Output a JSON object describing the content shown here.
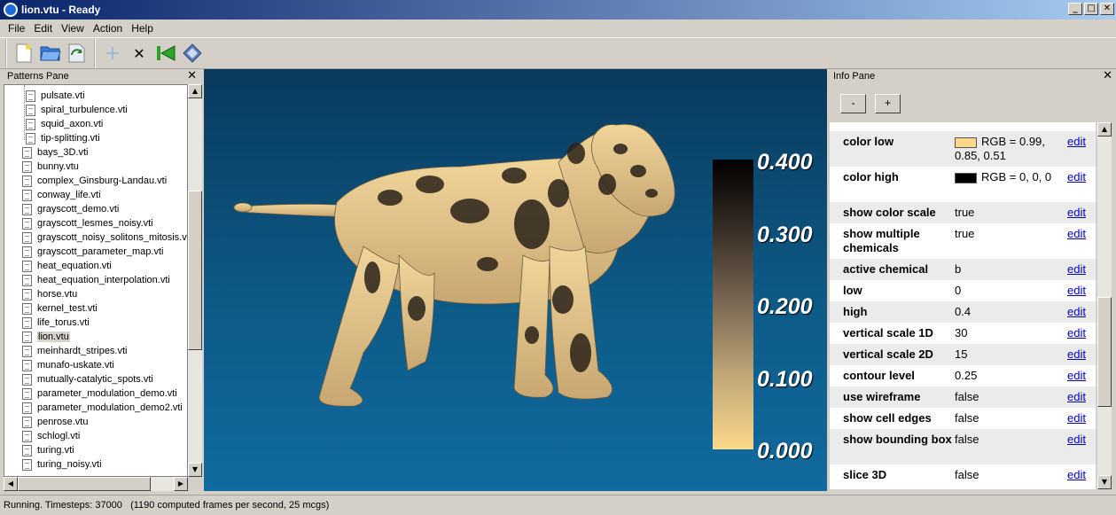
{
  "window": {
    "title": "lion.vtu - Ready",
    "min": "_",
    "max": "□",
    "close": "✕"
  },
  "menu": [
    {
      "label": "File"
    },
    {
      "label": "Edit"
    },
    {
      "label": "View"
    },
    {
      "label": "Action"
    },
    {
      "label": "Help"
    }
  ],
  "toolbar": {
    "icons": [
      "new-file-icon",
      "open-folder-icon",
      "reload-icon",
      "add-icon",
      "clear-icon",
      "restart-icon",
      "render-icon"
    ],
    "add_glyph": "+",
    "clear_glyph": "✕"
  },
  "patterns_pane": {
    "title": "Patterns Pane",
    "close": "✕",
    "items": [
      {
        "label": "pulsate.vti",
        "level": 2
      },
      {
        "label": "spiral_turbulence.vti",
        "level": 2
      },
      {
        "label": "squid_axon.vti",
        "level": 2
      },
      {
        "label": "tip-splitting.vti",
        "level": 2
      },
      {
        "label": "bays_3D.vti",
        "level": 1
      },
      {
        "label": "bunny.vtu",
        "level": 1
      },
      {
        "label": "complex_Ginsburg-Landau.vti",
        "level": 1
      },
      {
        "label": "conway_life.vti",
        "level": 1
      },
      {
        "label": "grayscott_demo.vti",
        "level": 1
      },
      {
        "label": "grayscott_lesmes_noisy.vti",
        "level": 1
      },
      {
        "label": "grayscott_noisy_solitons_mitosis.vti",
        "level": 1
      },
      {
        "label": "grayscott_parameter_map.vti",
        "level": 1
      },
      {
        "label": "heat_equation.vti",
        "level": 1
      },
      {
        "label": "heat_equation_interpolation.vti",
        "level": 1
      },
      {
        "label": "horse.vtu",
        "level": 1
      },
      {
        "label": "kernel_test.vti",
        "level": 1
      },
      {
        "label": "life_torus.vti",
        "level": 1
      },
      {
        "label": "lion.vtu",
        "level": 1,
        "selected": true
      },
      {
        "label": "meinhardt_stripes.vti",
        "level": 1
      },
      {
        "label": "munafo-uskate.vti",
        "level": 1
      },
      {
        "label": "mutually-catalytic_spots.vti",
        "level": 1
      },
      {
        "label": "parameter_modulation_demo.vti",
        "level": 1
      },
      {
        "label": "parameter_modulation_demo2.vti",
        "level": 1
      },
      {
        "label": "penrose.vtu",
        "level": 1
      },
      {
        "label": "schlogl.vti",
        "level": 1
      },
      {
        "label": "turing.vti",
        "level": 1
      },
      {
        "label": "turing_noisy.vti",
        "level": 1
      }
    ]
  },
  "viewport": {
    "colorbar": {
      "labels": [
        "0.400",
        "0.300",
        "0.200",
        "0.100",
        "0.000"
      ],
      "color_high": "#000000",
      "color_low": "#fcd88a"
    },
    "background_top": "#0a3a5e",
    "background_bottom": "#116aa0"
  },
  "info_pane": {
    "title": "Info Pane",
    "close": "✕",
    "minus": "-",
    "plus": "+",
    "rows": [
      {
        "key": "color low",
        "value": "RGB = 0.99, 0.85, 0.51",
        "swatch": "#fcd88a",
        "edit": "edit"
      },
      {
        "key": "color high",
        "value": "RGB = 0, 0, 0",
        "swatch": "#000000",
        "edit": "edit"
      },
      {
        "key": "show color scale",
        "value": "true",
        "edit": "edit"
      },
      {
        "key": "show multiple chemicals",
        "value": "true",
        "edit": "edit"
      },
      {
        "key": "active chemical",
        "value": "b",
        "edit": "edit"
      },
      {
        "key": "low",
        "value": "0",
        "edit": "edit"
      },
      {
        "key": "high",
        "value": "0.4",
        "edit": "edit"
      },
      {
        "key": "vertical scale 1D",
        "value": "30",
        "edit": "edit"
      },
      {
        "key": "vertical scale 2D",
        "value": "15",
        "edit": "edit"
      },
      {
        "key": "contour level",
        "value": "0.25",
        "edit": "edit"
      },
      {
        "key": "use wireframe",
        "value": "false",
        "edit": "edit"
      },
      {
        "key": "show cell edges",
        "value": "false",
        "edit": "edit"
      },
      {
        "key": "show bounding box",
        "value": "false",
        "edit": "edit"
      },
      {
        "key": "slice 3D",
        "value": "false",
        "edit": "edit"
      }
    ]
  },
  "status": {
    "text": "Running. Timesteps: 37000   (1190 computed frames per second, 25 mcgs)"
  }
}
